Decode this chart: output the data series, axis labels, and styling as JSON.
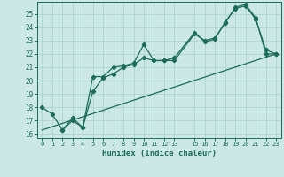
{
  "xlabel": "Humidex (Indice chaleur)",
  "bg_color": "#cce8e4",
  "grid_color": "#b0d8d0",
  "line_color": "#1a6b5a",
  "xlim": [
    -0.5,
    23.5
  ],
  "ylim": [
    15.7,
    25.9
  ],
  "yticks": [
    16,
    17,
    18,
    19,
    20,
    21,
    22,
    23,
    24,
    25
  ],
  "xticks": [
    0,
    1,
    2,
    3,
    4,
    5,
    6,
    7,
    8,
    9,
    10,
    11,
    12,
    13,
    15,
    16,
    17,
    18,
    19,
    20,
    21,
    22,
    23
  ],
  "line1_x": [
    0,
    1,
    2,
    3,
    4,
    5,
    6,
    7,
    8,
    9,
    10,
    11,
    12,
    13,
    15,
    16,
    17,
    18,
    19,
    20,
    21,
    22,
    23
  ],
  "line1_y": [
    18.0,
    17.5,
    16.3,
    17.2,
    16.5,
    20.3,
    20.3,
    21.0,
    21.1,
    21.3,
    22.7,
    21.5,
    21.5,
    21.5,
    23.5,
    23.0,
    23.2,
    24.3,
    25.5,
    25.7,
    24.7,
    22.0,
    22.0
  ],
  "line2_x": [
    0,
    23
  ],
  "line2_y": [
    16.3,
    22.0
  ],
  "line3_x": [
    2,
    3,
    4,
    5,
    6,
    7,
    8,
    9,
    10,
    11,
    12,
    13,
    15,
    16,
    17,
    18,
    19,
    20,
    21,
    22,
    23
  ],
  "line3_y": [
    16.3,
    17.0,
    16.5,
    19.2,
    20.2,
    20.5,
    21.0,
    21.2,
    21.7,
    21.5,
    21.5,
    21.7,
    23.6,
    22.9,
    23.1,
    24.4,
    25.4,
    25.6,
    24.6,
    22.3,
    22.0
  ]
}
